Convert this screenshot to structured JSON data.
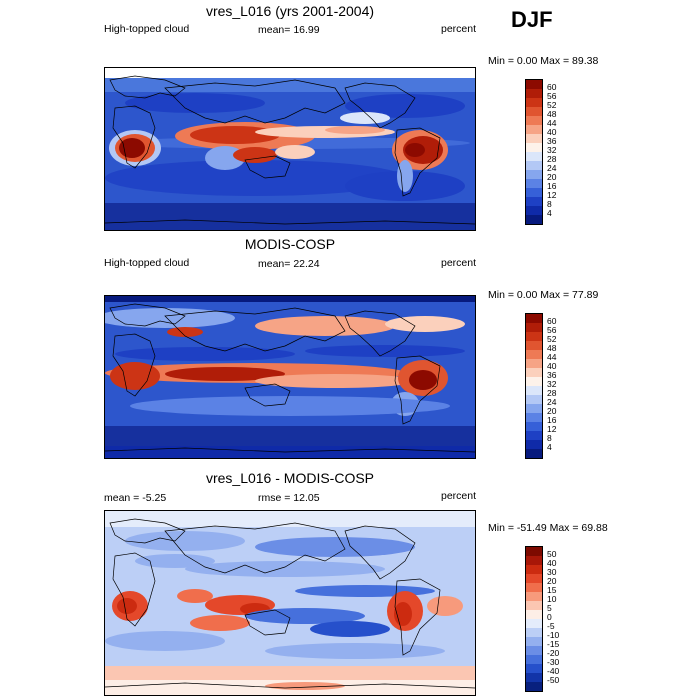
{
  "season": "DJF",
  "panels": [
    {
      "title": "vres_L016 (yrs 2001-2004)",
      "left_label": "High-topped cloud",
      "center_label": "mean=  16.99",
      "right_label": "percent",
      "minmax": "Min =   0.00 Max =  89.38",
      "colorbar_labels": [
        "60",
        "56",
        "52",
        "48",
        "44",
        "40",
        "36",
        "32",
        "28",
        "24",
        "20",
        "16",
        "12",
        "8",
        "4"
      ]
    },
    {
      "title": "MODIS-COSP",
      "left_label": "High-topped cloud",
      "center_label": "mean=  22.24",
      "right_label": "percent",
      "minmax": "Min =   0.00 Max =  77.89",
      "colorbar_labels": [
        "60",
        "56",
        "52",
        "48",
        "44",
        "40",
        "36",
        "32",
        "28",
        "24",
        "20",
        "16",
        "12",
        "8",
        "4"
      ]
    },
    {
      "title": "vres_L016 - MODIS-COSP",
      "left_label": "mean =  -5.25",
      "center_label": "rmse =  12.05",
      "right_label": "percent",
      "minmax": "Min = -51.49 Max =  69.88",
      "colorbar_labels": [
        "50",
        "40",
        "30",
        "20",
        "15",
        "10",
        "5",
        "0",
        "-5",
        "-10",
        "-15",
        "-20",
        "-30",
        "-40",
        "-50"
      ]
    }
  ],
  "colors": {
    "abs_scale": [
      "#8c0a00",
      "#b01d08",
      "#cc3415",
      "#e05530",
      "#ee7a55",
      "#f6a486",
      "#fbd0bc",
      "#fdf2ea",
      "#dbe6fa",
      "#b3c8f5",
      "#86a6ee",
      "#5b82e5",
      "#3660d8",
      "#1e40c4",
      "#0f2aa8",
      "#071a7e"
    ],
    "diff_scale": [
      "#7d0a00",
      "#a81708",
      "#cc2b10",
      "#e4482a",
      "#f06e4c",
      "#f79a7c",
      "#fbc6b2",
      "#fdeee6",
      "#e4ecfb",
      "#bccff6",
      "#94b0ef",
      "#6b8ee6",
      "#4670dc",
      "#2650cb",
      "#1234a8",
      "#08207e"
    ]
  }
}
